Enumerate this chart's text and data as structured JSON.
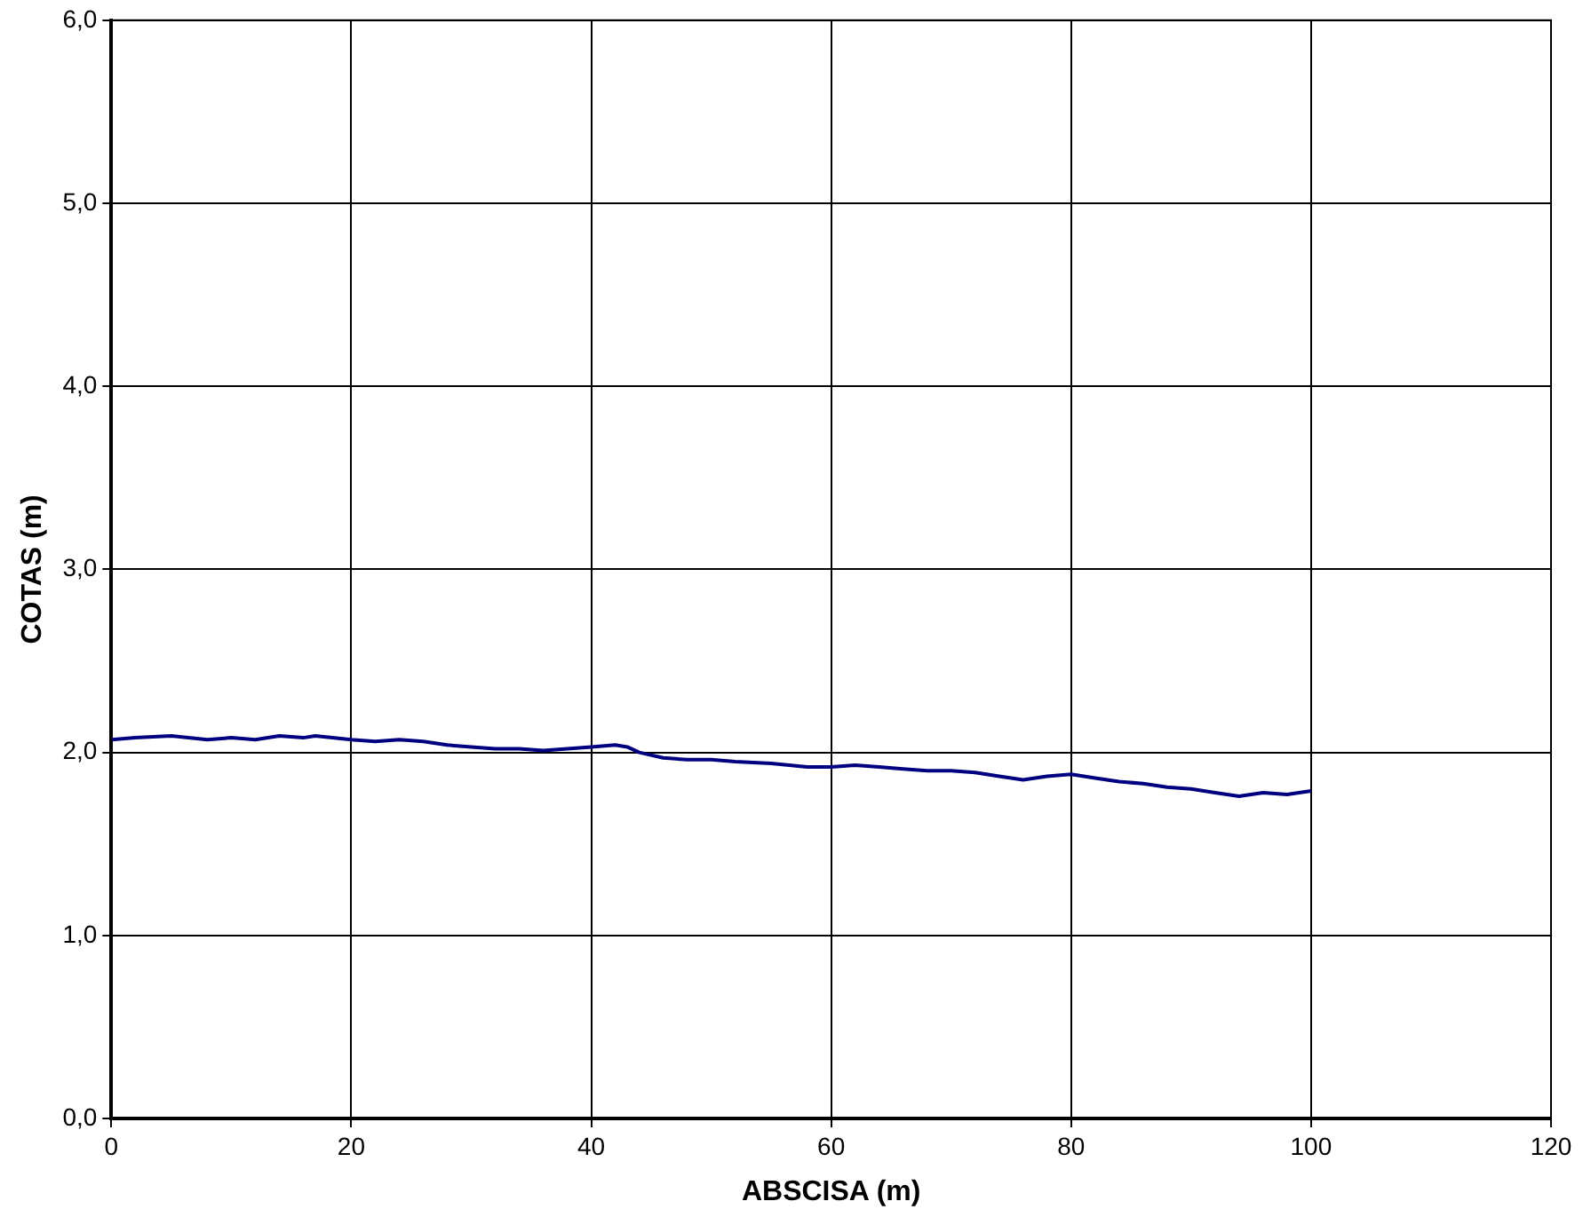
{
  "chart_data": {
    "type": "line",
    "xlabel": "ABSCISA (m)",
    "ylabel": "COTAS (m)",
    "xlim": [
      0,
      120
    ],
    "xticks": [
      0,
      20,
      40,
      60,
      80,
      100,
      120
    ],
    "ylim": [
      0,
      6
    ],
    "yticks": [
      {
        "value": 0,
        "label": "0,0"
      },
      {
        "value": 1,
        "label": "1,0"
      },
      {
        "value": 2,
        "label": "2,0"
      },
      {
        "value": 3,
        "label": "3,0"
      },
      {
        "value": 4,
        "label": "4,0"
      },
      {
        "value": 5,
        "label": "5,0"
      },
      {
        "value": 6,
        "label": "6,0"
      }
    ],
    "grid": true,
    "legend": false,
    "marker": "none",
    "line_style": "solid",
    "series": [
      {
        "color": "#000080",
        "x": [
          0,
          2,
          5,
          8,
          10,
          12,
          14,
          16,
          17,
          20,
          22,
          24,
          26,
          28,
          30,
          32,
          34,
          36,
          38,
          40,
          42,
          43,
          44,
          46,
          48,
          50,
          52,
          55,
          58,
          60,
          62,
          64,
          66,
          68,
          70,
          72,
          74,
          76,
          78,
          80,
          82,
          84,
          86,
          88,
          90,
          92,
          94,
          96,
          98,
          100
        ],
        "values": [
          2.07,
          2.08,
          2.09,
          2.07,
          2.08,
          2.07,
          2.09,
          2.08,
          2.09,
          2.07,
          2.06,
          2.07,
          2.06,
          2.04,
          2.03,
          2.02,
          2.02,
          2.01,
          2.02,
          2.03,
          2.04,
          2.03,
          2.0,
          1.97,
          1.96,
          1.96,
          1.95,
          1.94,
          1.92,
          1.92,
          1.93,
          1.92,
          1.91,
          1.9,
          1.9,
          1.89,
          1.87,
          1.85,
          1.87,
          1.88,
          1.86,
          1.84,
          1.83,
          1.81,
          1.8,
          1.78,
          1.76,
          1.78,
          1.77,
          1.79
        ]
      }
    ]
  }
}
